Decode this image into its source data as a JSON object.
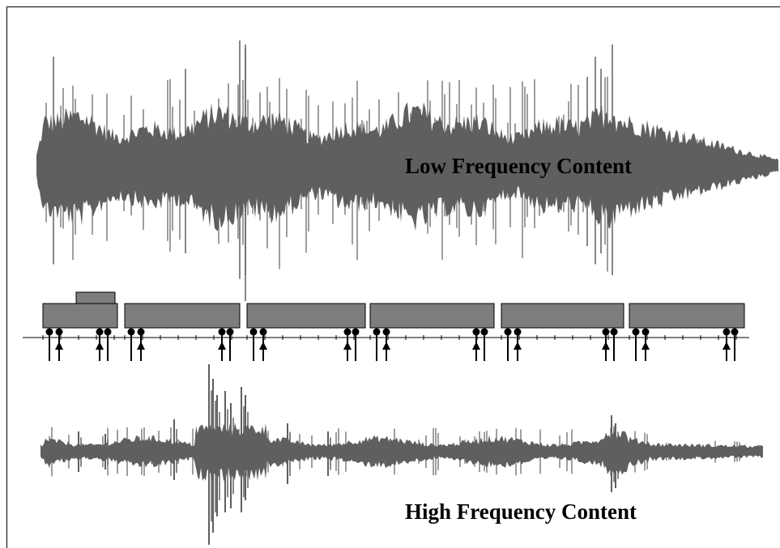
{
  "labels": {
    "low": "Low Frequency Content",
    "high": "High Frequency Content"
  },
  "colors": {
    "waveform": "#5f5f5f",
    "car_fill": "#7d7d7d",
    "outline": "#000000",
    "background": "#ffffff"
  },
  "train": {
    "car_count": 6,
    "has_locomotive_cab": true
  },
  "icons": [
    "wheel-icon",
    "sensor-arrow-icon"
  ]
}
